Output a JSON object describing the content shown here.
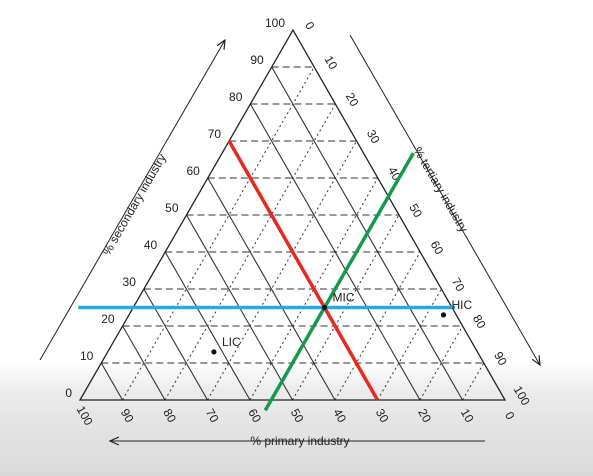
{
  "chart_data": {
    "type": "ternary",
    "lim": [
      0,
      100
    ],
    "axes": {
      "primary": {
        "label": "% primary industry",
        "ticks": [
          0,
          10,
          20,
          30,
          40,
          50,
          60,
          70,
          80,
          90,
          100
        ]
      },
      "secondary": {
        "label": "% secondary industry",
        "ticks": [
          0,
          10,
          20,
          30,
          40,
          50,
          60,
          70,
          80,
          90,
          100
        ]
      },
      "tertiary": {
        "label": "% tertiary industry",
        "ticks": [
          0,
          10,
          20,
          30,
          40,
          50,
          60,
          70,
          80,
          90,
          100
        ]
      }
    },
    "points": [
      {
        "name": "LIC",
        "primary": 62,
        "secondary": 13,
        "tertiary": 25
      },
      {
        "name": "MIC",
        "primary": 30,
        "secondary": 25,
        "tertiary": 45
      },
      {
        "name": "HIC",
        "primary": 3,
        "secondary": 23,
        "tertiary": 74
      }
    ],
    "lines": [
      {
        "axis": "primary",
        "value": 30,
        "color": "#e8291c"
      },
      {
        "axis": "tertiary",
        "value": 45,
        "color": "#17994c"
      },
      {
        "axis": "secondary",
        "value": 25,
        "color": "#2aa9e0"
      }
    ]
  }
}
